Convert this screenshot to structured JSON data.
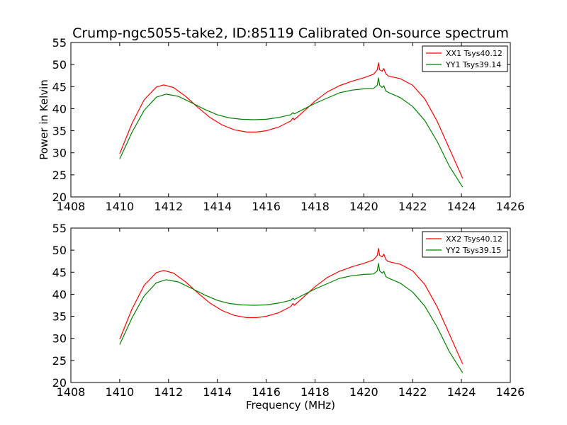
{
  "figure": {
    "title": "Crump-ngc5055-take2, ID:85119 Calibrated On-source spectrum",
    "xlabel": "Frequency (MHz)",
    "ylabel": "Power in Kelvin"
  },
  "chart_data": [
    {
      "type": "line",
      "xlim": [
        1408,
        1426
      ],
      "ylim": [
        20,
        55
      ],
      "xticks": [
        1408,
        1410,
        1412,
        1414,
        1416,
        1418,
        1420,
        1422,
        1424,
        1426
      ],
      "yticks": [
        20,
        25,
        30,
        35,
        40,
        45,
        50,
        55
      ],
      "ylabel": "Power in Kelvin",
      "xlabel": "",
      "legend_position": "top-right",
      "grid": false,
      "series": [
        {
          "name": "XX1 Tsys40.12",
          "color": "#ff0000",
          "points": [
            [
              1410.0,
              29.8
            ],
            [
              1410.5,
              36.6
            ],
            [
              1411.0,
              42.0
            ],
            [
              1411.5,
              44.9
            ],
            [
              1411.8,
              45.4
            ],
            [
              1412.2,
              44.8
            ],
            [
              1412.7,
              42.8
            ],
            [
              1413.2,
              40.3
            ],
            [
              1413.7,
              38.0
            ],
            [
              1414.2,
              36.3
            ],
            [
              1414.7,
              35.2
            ],
            [
              1415.2,
              34.7
            ],
            [
              1415.6,
              34.7
            ],
            [
              1416.0,
              35.0
            ],
            [
              1416.5,
              35.8
            ],
            [
              1417.0,
              37.2
            ],
            [
              1417.1,
              37.9
            ],
            [
              1417.15,
              37.5
            ],
            [
              1417.5,
              39.2
            ],
            [
              1418.0,
              41.7
            ],
            [
              1418.5,
              43.8
            ],
            [
              1419.0,
              45.2
            ],
            [
              1419.5,
              46.2
            ],
            [
              1420.0,
              47.0
            ],
            [
              1420.4,
              47.8
            ],
            [
              1420.55,
              48.8
            ],
            [
              1420.6,
              50.4
            ],
            [
              1420.65,
              48.8
            ],
            [
              1420.75,
              48.5
            ],
            [
              1420.82,
              49.1
            ],
            [
              1420.9,
              47.9
            ],
            [
              1421.0,
              47.4
            ],
            [
              1421.5,
              46.8
            ],
            [
              1422.0,
              45.3
            ],
            [
              1422.5,
              42.2
            ],
            [
              1423.0,
              37.2
            ],
            [
              1423.5,
              31.0
            ],
            [
              1424.05,
              24.2
            ]
          ]
        },
        {
          "name": "YY1 Tsys39.14",
          "color": "#008000",
          "points": [
            [
              1410.0,
              28.6
            ],
            [
              1410.5,
              34.6
            ],
            [
              1411.0,
              39.6
            ],
            [
              1411.5,
              42.6
            ],
            [
              1411.9,
              43.3
            ],
            [
              1412.4,
              42.8
            ],
            [
              1413.0,
              41.2
            ],
            [
              1413.5,
              39.8
            ],
            [
              1414.0,
              38.6
            ],
            [
              1414.5,
              37.9
            ],
            [
              1415.0,
              37.6
            ],
            [
              1415.5,
              37.5
            ],
            [
              1416.0,
              37.6
            ],
            [
              1416.5,
              38.0
            ],
            [
              1417.0,
              38.6
            ],
            [
              1417.1,
              39.1
            ],
            [
              1417.15,
              38.8
            ],
            [
              1417.5,
              39.8
            ],
            [
              1418.0,
              41.2
            ],
            [
              1418.5,
              42.4
            ],
            [
              1419.0,
              43.6
            ],
            [
              1419.5,
              44.2
            ],
            [
              1420.0,
              44.5
            ],
            [
              1420.4,
              44.6
            ],
            [
              1420.55,
              45.3
            ],
            [
              1420.6,
              47.0
            ],
            [
              1420.65,
              45.3
            ],
            [
              1420.75,
              44.8
            ],
            [
              1420.82,
              45.2
            ],
            [
              1420.9,
              44.0
            ],
            [
              1421.0,
              43.7
            ],
            [
              1421.5,
              42.5
            ],
            [
              1422.0,
              40.5
            ],
            [
              1422.5,
              37.3
            ],
            [
              1423.0,
              32.6
            ],
            [
              1423.5,
              27.0
            ],
            [
              1424.05,
              22.2
            ]
          ]
        }
      ]
    },
    {
      "type": "line",
      "xlim": [
        1408,
        1426
      ],
      "ylim": [
        20,
        55
      ],
      "xticks": [
        1408,
        1410,
        1412,
        1414,
        1416,
        1418,
        1420,
        1422,
        1424,
        1426
      ],
      "yticks": [
        20,
        25,
        30,
        35,
        40,
        45,
        50,
        55
      ],
      "xlabel": "Frequency (MHz)",
      "ylabel": "",
      "legend_position": "top-right",
      "grid": false,
      "series": [
        {
          "name": "XX2 Tsys40.12",
          "color": "#ff0000",
          "points": [
            [
              1410.0,
              29.8
            ],
            [
              1410.5,
              36.6
            ],
            [
              1411.0,
              42.0
            ],
            [
              1411.5,
              44.9
            ],
            [
              1411.8,
              45.4
            ],
            [
              1412.2,
              44.8
            ],
            [
              1412.7,
              42.8
            ],
            [
              1413.2,
              40.3
            ],
            [
              1413.7,
              38.0
            ],
            [
              1414.2,
              36.3
            ],
            [
              1414.7,
              35.2
            ],
            [
              1415.2,
              34.7
            ],
            [
              1415.6,
              34.7
            ],
            [
              1416.0,
              35.0
            ],
            [
              1416.5,
              35.8
            ],
            [
              1417.0,
              37.2
            ],
            [
              1417.1,
              37.9
            ],
            [
              1417.15,
              37.5
            ],
            [
              1417.5,
              39.2
            ],
            [
              1418.0,
              41.7
            ],
            [
              1418.5,
              43.8
            ],
            [
              1419.0,
              45.2
            ],
            [
              1419.5,
              46.2
            ],
            [
              1420.0,
              47.0
            ],
            [
              1420.4,
              47.8
            ],
            [
              1420.55,
              48.8
            ],
            [
              1420.6,
              50.4
            ],
            [
              1420.65,
              48.8
            ],
            [
              1420.75,
              48.5
            ],
            [
              1420.82,
              49.1
            ],
            [
              1420.9,
              47.9
            ],
            [
              1421.0,
              47.4
            ],
            [
              1421.5,
              46.8
            ],
            [
              1422.0,
              45.3
            ],
            [
              1422.5,
              42.2
            ],
            [
              1423.0,
              37.2
            ],
            [
              1423.5,
              31.0
            ],
            [
              1424.05,
              24.2
            ]
          ]
        },
        {
          "name": "YY2 Tsys39.15",
          "color": "#008000",
          "points": [
            [
              1410.0,
              28.6
            ],
            [
              1410.5,
              34.6
            ],
            [
              1411.0,
              39.6
            ],
            [
              1411.5,
              42.6
            ],
            [
              1411.9,
              43.3
            ],
            [
              1412.4,
              42.8
            ],
            [
              1413.0,
              41.2
            ],
            [
              1413.5,
              39.8
            ],
            [
              1414.0,
              38.6
            ],
            [
              1414.5,
              37.9
            ],
            [
              1415.0,
              37.6
            ],
            [
              1415.5,
              37.5
            ],
            [
              1416.0,
              37.6
            ],
            [
              1416.5,
              38.0
            ],
            [
              1417.0,
              38.6
            ],
            [
              1417.1,
              39.1
            ],
            [
              1417.15,
              38.8
            ],
            [
              1417.5,
              39.8
            ],
            [
              1418.0,
              41.2
            ],
            [
              1418.5,
              42.4
            ],
            [
              1419.0,
              43.6
            ],
            [
              1419.5,
              44.2
            ],
            [
              1420.0,
              44.5
            ],
            [
              1420.4,
              44.6
            ],
            [
              1420.55,
              45.3
            ],
            [
              1420.6,
              47.0
            ],
            [
              1420.65,
              45.3
            ],
            [
              1420.75,
              44.8
            ],
            [
              1420.82,
              45.2
            ],
            [
              1420.9,
              44.0
            ],
            [
              1421.0,
              43.7
            ],
            [
              1421.5,
              42.5
            ],
            [
              1422.0,
              40.5
            ],
            [
              1422.5,
              37.3
            ],
            [
              1423.0,
              32.6
            ],
            [
              1423.5,
              27.0
            ],
            [
              1424.05,
              22.2
            ]
          ]
        }
      ]
    }
  ]
}
